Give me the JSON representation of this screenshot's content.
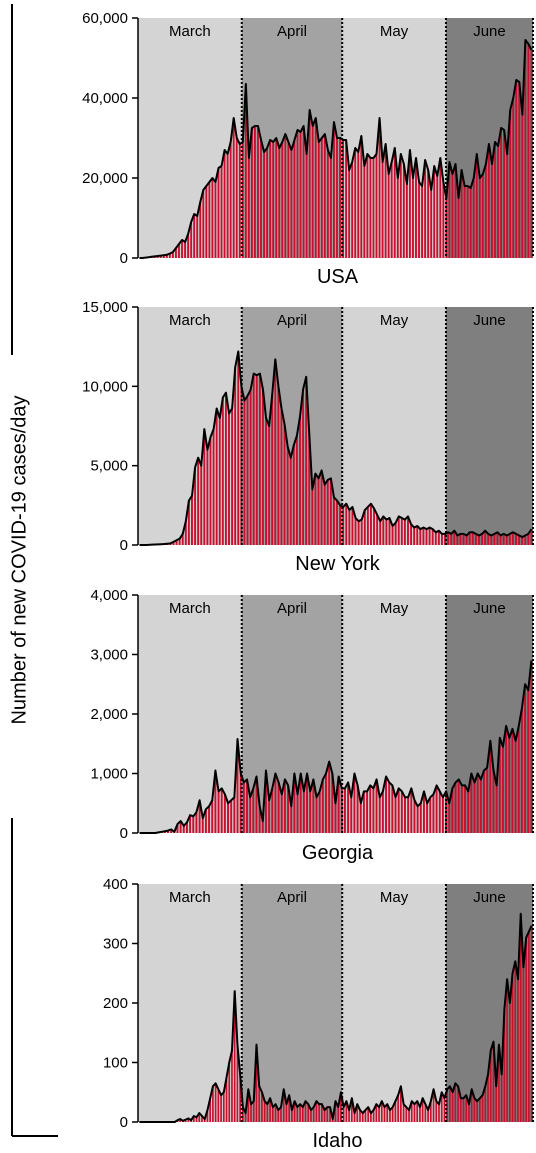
{
  "figure": {
    "ylabel": "Number of new COVID-19 cases/day",
    "month_labels": [
      "March",
      "April",
      "May",
      "June"
    ],
    "colors": {
      "bar": "#c8102e",
      "bar_gap": "#ffffff",
      "line": "#000000",
      "month_march": "#d4d4d4",
      "month_april": "#a3a3a3",
      "month_may": "#d4d4d4",
      "month_june": "#7f7f7f",
      "month_divider": "#000000"
    }
  },
  "chart_data": [
    {
      "type": "bar",
      "title": "USA",
      "x_range": [
        "2020-03-01",
        "2020-06-27"
      ],
      "ylim": [
        0,
        60000
      ],
      "yticks": [
        0,
        20000,
        40000,
        60000
      ],
      "ytick_labels": [
        "0",
        "20,000",
        "40,000",
        "60,000"
      ],
      "month_boundaries": [
        "2020-03-01",
        "2020-04-01",
        "2020-05-01",
        "2020-06-01",
        "2020-06-27"
      ],
      "series": [
        {
          "values": [
            0,
            0,
            100,
            200,
            300,
            400,
            500,
            600,
            700,
            800,
            1100,
            1500,
            2500,
            3500,
            4500,
            4000,
            6000,
            9000,
            11000,
            10500,
            14000,
            17000,
            18000,
            19000,
            20000,
            19000,
            22500,
            23000,
            27000,
            26000,
            29000,
            35000,
            30000,
            28500,
            29000,
            43500,
            25000,
            32500,
            33000,
            33000,
            29500,
            26500,
            27500,
            29500,
            29000,
            30000,
            27500,
            29000,
            31000,
            29000,
            27000,
            29500,
            32000,
            31500,
            33000,
            26000,
            37000,
            33000,
            35000,
            29000,
            30000,
            31000,
            27000,
            25000,
            34000,
            30000,
            30000,
            29500,
            29500,
            22000,
            24000,
            27500,
            26500,
            30500,
            23000,
            26000,
            25000,
            25000,
            26000,
            35000,
            24000,
            28500,
            21000,
            24000,
            27500,
            20000,
            26000,
            23500,
            18500,
            27000,
            20000,
            25000,
            19000,
            18000,
            24500,
            22000,
            17000,
            23000,
            20500,
            25000,
            19000,
            15000,
            24000,
            21000,
            23500,
            15000,
            22000,
            18000,
            18000,
            17500,
            20000,
            26000,
            20000,
            21000,
            23500,
            28500,
            23500,
            29000,
            28000,
            32500,
            32000,
            26000,
            37000,
            40000,
            44500,
            44000,
            35800,
            54500,
            53500,
            52000
          ]
        }
      ]
    },
    {
      "type": "bar",
      "title": "New York",
      "x_range": [
        "2020-03-01",
        "2020-06-27"
      ],
      "ylim": [
        0,
        15000
      ],
      "yticks": [
        0,
        5000,
        10000,
        15000
      ],
      "ytick_labels": [
        "0",
        "5,000",
        "10,000",
        "15,000"
      ],
      "month_boundaries": [
        "2020-03-01",
        "2020-04-01",
        "2020-05-01",
        "2020-06-01",
        "2020-06-27"
      ],
      "series": [
        {
          "values": [
            0,
            0,
            0,
            10,
            20,
            30,
            40,
            50,
            60,
            80,
            100,
            200,
            300,
            400,
            700,
            1500,
            2800,
            3100,
            4900,
            5500,
            5000,
            7300,
            6000,
            6800,
            7300,
            8600,
            8000,
            9300,
            9600,
            8300,
            8600,
            11200,
            12200,
            10000,
            9100,
            9400,
            9800,
            10800,
            10700,
            10800,
            9800,
            8000,
            7500,
            9500,
            11700,
            10000,
            8600,
            7600,
            6200,
            5500,
            6300,
            6900,
            8100,
            9800,
            10600,
            7000,
            3500,
            4500,
            4200,
            4700,
            3800,
            4100,
            4200,
            3000,
            2800,
            2500,
            2400,
            2600,
            2200,
            2400,
            1700,
            1500,
            1600,
            2200,
            2400,
            2600,
            2300,
            1900,
            1500,
            1800,
            1600,
            1700,
            1200,
            1400,
            1800,
            1700,
            1600,
            1800,
            1300,
            1100,
            1200,
            1000,
            1100,
            1000,
            1100,
            1000,
            800,
            900,
            700,
            700,
            800,
            700,
            900,
            600,
            700,
            700,
            600,
            800,
            800,
            700,
            600,
            700,
            900,
            700,
            600,
            700,
            800,
            600,
            700,
            600,
            700,
            800,
            700,
            600,
            500,
            600,
            700,
            1000
          ]
        }
      ]
    },
    {
      "type": "bar",
      "title": "Georgia",
      "x_range": [
        "2020-03-01",
        "2020-06-27"
      ],
      "ylim": [
        0,
        4000
      ],
      "yticks": [
        0,
        1000,
        2000,
        3000,
        4000
      ],
      "ytick_labels": [
        "0",
        "1,000",
        "2,000",
        "3,000",
        "4,000"
      ],
      "month_boundaries": [
        "2020-03-01",
        "2020-04-01",
        "2020-05-01",
        "2020-06-01",
        "2020-06-27"
      ],
      "series": [
        {
          "values": [
            0,
            0,
            0,
            0,
            0,
            0,
            10,
            20,
            30,
            40,
            60,
            20,
            150,
            200,
            120,
            180,
            300,
            280,
            350,
            550,
            250,
            400,
            450,
            550,
            1050,
            700,
            750,
            650,
            500,
            550,
            600,
            1580,
            1000,
            850,
            900,
            600,
            750,
            950,
            450,
            200,
            1050,
            550,
            750,
            1000,
            850,
            650,
            900,
            800,
            450,
            1000,
            650,
            1000,
            700,
            1000,
            700,
            900,
            600,
            700,
            900,
            1000,
            1200,
            1000,
            500,
            950,
            750,
            750,
            850,
            600,
            1000,
            800,
            500,
            700,
            700,
            800,
            750,
            900,
            600,
            700,
            950,
            850,
            800,
            600,
            750,
            700,
            600,
            600,
            750,
            550,
            450,
            500,
            700,
            500,
            600,
            650,
            800,
            700,
            600,
            700,
            500,
            750,
            850,
            900,
            800,
            800,
            700,
            1000,
            850,
            1000,
            900,
            1050,
            1100,
            1550,
            1050,
            800,
            1600,
            1450,
            1800,
            1600,
            1750,
            1550,
            1800,
            2100,
            2500,
            2400,
            2900
          ]
        }
      ]
    },
    {
      "type": "bar",
      "title": "Idaho",
      "x_range": [
        "2020-03-01",
        "2020-06-27"
      ],
      "ylim": [
        0,
        400
      ],
      "yticks": [
        0,
        100,
        200,
        300,
        400
      ],
      "ytick_labels": [
        "0",
        "100",
        "200",
        "300",
        "400"
      ],
      "month_boundaries": [
        "2020-03-01",
        "2020-04-01",
        "2020-05-01",
        "2020-06-01",
        "2020-06-27"
      ],
      "series": [
        {
          "values": [
            0,
            0,
            0,
            0,
            0,
            0,
            0,
            0,
            0,
            0,
            0,
            0,
            0,
            0,
            3,
            5,
            2,
            4,
            6,
            3,
            10,
            8,
            15,
            10,
            5,
            20,
            40,
            60,
            65,
            55,
            45,
            50,
            75,
            100,
            120,
            220,
            130,
            80,
            25,
            15,
            55,
            30,
            35,
            130,
            60,
            50,
            35,
            30,
            40,
            25,
            30,
            20,
            25,
            55,
            30,
            45,
            20,
            35,
            25,
            30,
            25,
            35,
            30,
            20,
            25,
            35,
            30,
            30,
            20,
            25,
            25,
            5,
            35,
            25,
            50,
            25,
            35,
            20,
            40,
            15,
            30,
            20,
            15,
            20,
            25,
            15,
            20,
            30,
            25,
            35,
            25,
            30,
            20,
            25,
            35,
            45,
            60,
            30,
            25,
            20,
            35,
            30,
            35,
            25,
            40,
            30,
            20,
            35,
            55,
            35,
            30,
            50,
            40,
            55,
            60,
            50,
            65,
            60,
            40,
            40,
            45,
            30,
            55,
            40,
            35,
            40,
            45,
            60,
            80,
            120,
            135,
            60,
            130,
            80,
            190,
            240,
            200,
            250,
            270,
            240,
            350,
            260,
            310,
            320,
            330
          ]
        }
      ]
    }
  ]
}
